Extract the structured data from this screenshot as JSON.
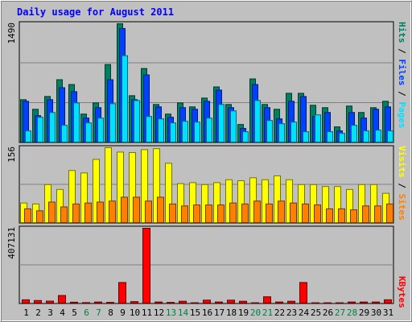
{
  "title": "Daily usage for August 2011",
  "colors": {
    "background": "#c0c0c0",
    "plot_bg": "#c0c0c0",
    "title_text": "#0000ff",
    "grid": "#808080",
    "hits": "#008060",
    "files": "#0040ff",
    "pages": "#00e0ff",
    "visits": "#ffff00",
    "sites": "#ff8000",
    "kbytes": "#ff0000",
    "weekend_label": "#008040",
    "weekday_label": "#000080"
  },
  "chart_data": [
    {
      "type": "bar",
      "panel": "hits-files-pages",
      "ymax_label": "1490",
      "ylim": [
        0,
        1490
      ],
      "legend": {
        "pages": "Pages",
        "files": "Files",
        "hits": "Hits",
        "sep": " / "
      },
      "categories": [
        "1",
        "2",
        "3",
        "4",
        "5",
        "6",
        "7",
        "8",
        "9",
        "10",
        "11",
        "12",
        "13",
        "14",
        "15",
        "16",
        "17",
        "18",
        "19",
        "20",
        "21",
        "22",
        "23",
        "24",
        "25",
        "26",
        "27",
        "28",
        "29",
        "30",
        "31"
      ],
      "weekend_days": [
        "6",
        "7",
        "13",
        "14",
        "20",
        "21",
        "27",
        "28"
      ],
      "series": [
        {
          "name": "Hits",
          "values": [
            540,
            420,
            580,
            790,
            730,
            360,
            500,
            980,
            1490,
            590,
            930,
            480,
            360,
            500,
            450,
            560,
            700,
            480,
            230,
            800,
            480,
            420,
            620,
            620,
            470,
            440,
            200,
            460,
            380,
            440,
            520
          ]
        },
        {
          "name": "Files",
          "values": [
            520,
            340,
            540,
            690,
            640,
            310,
            440,
            790,
            1430,
            540,
            850,
            450,
            320,
            440,
            420,
            520,
            660,
            440,
            180,
            730,
            440,
            300,
            520,
            580,
            330,
            380,
            150,
            380,
            310,
            420,
            450
          ]
        },
        {
          "name": "Pages",
          "values": [
            150,
            320,
            380,
            220,
            500,
            250,
            310,
            490,
            1090,
            530,
            330,
            300,
            250,
            270,
            260,
            310,
            480,
            400,
            140,
            530,
            280,
            240,
            260,
            140,
            350,
            140,
            120,
            220,
            150,
            160,
            150
          ]
        }
      ]
    },
    {
      "type": "bar",
      "panel": "visits-sites",
      "ymax_label": "156",
      "ylim": [
        0,
        156
      ],
      "legend": {
        "sites": "Sites",
        "visits": "Visits",
        "sep": " / "
      },
      "categories": [
        "1",
        "2",
        "3",
        "4",
        "5",
        "6",
        "7",
        "8",
        "9",
        "10",
        "11",
        "12",
        "13",
        "14",
        "15",
        "16",
        "17",
        "18",
        "19",
        "20",
        "21",
        "22",
        "23",
        "24",
        "25",
        "26",
        "27",
        "28",
        "29",
        "30",
        "31"
      ],
      "series": [
        {
          "name": "Visits",
          "values": [
            42,
            40,
            80,
            70,
            109,
            104,
            132,
            156,
            147,
            146,
            152,
            154,
            124,
            82,
            84,
            80,
            84,
            90,
            88,
            94,
            90,
            98,
            90,
            80,
            80,
            76,
            76,
            70,
            80,
            80,
            62
          ]
        },
        {
          "name": "Sites",
          "values": [
            30,
            26,
            44,
            34,
            40,
            42,
            44,
            46,
            54,
            54,
            46,
            54,
            40,
            36,
            38,
            38,
            38,
            42,
            40,
            46,
            40,
            46,
            42,
            40,
            38,
            30,
            30,
            28,
            36,
            36,
            40
          ]
        }
      ]
    },
    {
      "type": "bar",
      "panel": "kbytes",
      "ymax_label": "407131",
      "ylim": [
        0,
        407131
      ],
      "legend": {
        "kbytes": "KBytes"
      },
      "categories": [
        "1",
        "2",
        "3",
        "4",
        "5",
        "6",
        "7",
        "8",
        "9",
        "10",
        "11",
        "12",
        "13",
        "14",
        "15",
        "16",
        "17",
        "18",
        "19",
        "20",
        "21",
        "22",
        "23",
        "24",
        "25",
        "26",
        "27",
        "28",
        "29",
        "30",
        "31"
      ],
      "series": [
        {
          "name": "KBytes",
          "values": [
            22000,
            18000,
            15000,
            45000,
            9000,
            7000,
            10000,
            8000,
            115000,
            12000,
            407131,
            10000,
            8000,
            14000,
            6000,
            20000,
            10000,
            20000,
            14000,
            6000,
            38000,
            10000,
            14000,
            115000,
            6000,
            6000,
            6000,
            10000,
            10000,
            10000,
            22000
          ]
        }
      ]
    }
  ]
}
